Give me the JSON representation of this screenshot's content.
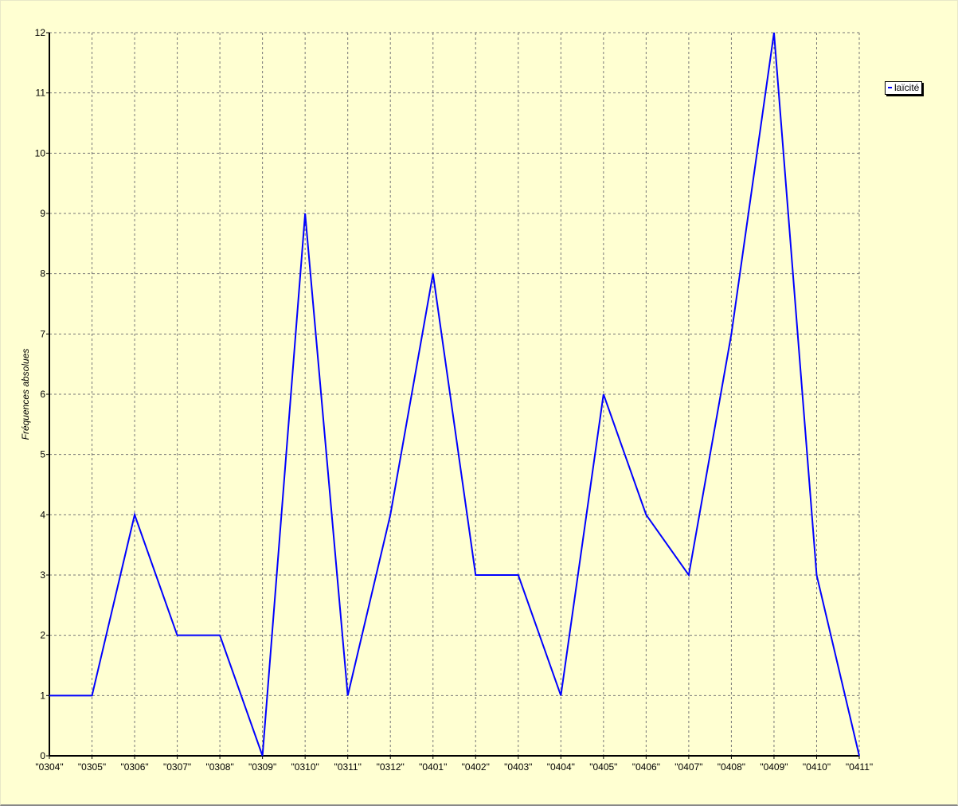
{
  "chart_data": {
    "type": "line",
    "ylabel": "Fréquences absolues",
    "xlabel": "",
    "categories": [
      "\"0304\"",
      "\"0305\"",
      "\"0306\"",
      "\"0307\"",
      "\"0308\"",
      "\"0309\"",
      "\"0310\"",
      "\"0311\"",
      "\"0312\"",
      "\"0401\"",
      "\"0402\"",
      "\"0403\"",
      "\"0404\"",
      "\"0405\"",
      "\"0406\"",
      "\"0407\"",
      "\"0408\"",
      "\"0409\"",
      "\"0410\"",
      "\"0411\""
    ],
    "series": [
      {
        "name": "laïcité",
        "color": "#0000ff",
        "values": [
          1,
          1,
          4,
          2,
          2,
          0,
          9,
          1,
          4,
          8,
          3,
          3,
          1,
          6,
          4,
          3,
          7,
          12,
          3,
          0
        ]
      }
    ],
    "ylim": [
      0,
      12
    ],
    "yticks": [
      0,
      1,
      2,
      3,
      4,
      5,
      6,
      7,
      8,
      9,
      10,
      11,
      12
    ],
    "grid": true,
    "legend_position": "top-right",
    "background": "#FFFFD2"
  }
}
